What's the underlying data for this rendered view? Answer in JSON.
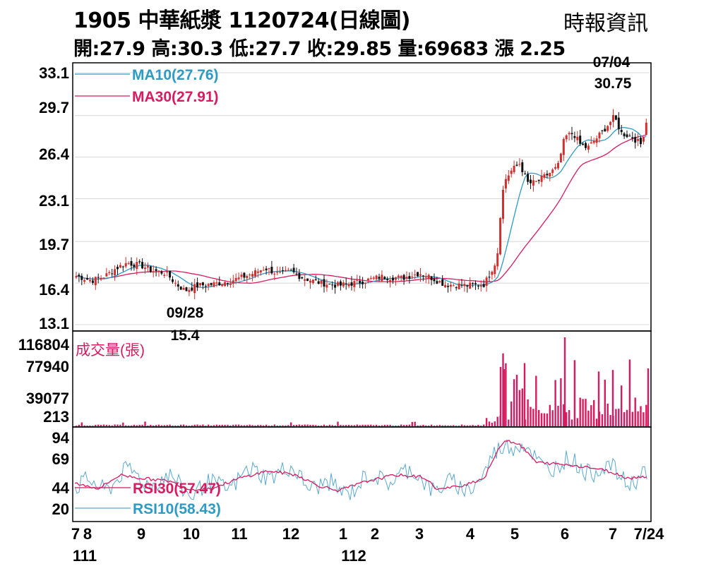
{
  "header": {
    "title": "1905  中華紙漿 1120724(日線圖)",
    "source": "時報資訊",
    "stats": "開:27.9 高:30.3 低:27.7 收:29.85 量:69683 漲 2.25"
  },
  "chart_data": [
    {
      "type": "candlestick",
      "title": "1905 中華紙漿 1120724(日線圖)",
      "ohlc_latest": {
        "open": 27.9,
        "high": 30.3,
        "low": 27.7,
        "close": 29.85,
        "volume": 69683,
        "change": 2.25
      },
      "ylim": [
        13.1,
        33.1
      ],
      "y_ticks": [
        "33.1",
        "29.7",
        "26.4",
        "23.1",
        "19.7",
        "16.4",
        "13.1"
      ],
      "x_ticks": [
        "7",
        "8",
        "9",
        "10",
        "11",
        "12",
        "1",
        "2",
        "3",
        "4",
        "5",
        "6",
        "7",
        "7/24"
      ],
      "x_year_labels": [
        "111",
        "112"
      ],
      "series": [
        {
          "name": "MA10(27.76)",
          "color": "#2e9bc4"
        },
        {
          "name": "MA30(27.91)",
          "color": "#d81b60"
        }
      ],
      "annotations": [
        {
          "date": "07/04",
          "value": "30.75",
          "kind": "high"
        },
        {
          "date": "09/28",
          "value": "15.4",
          "kind": "low"
        }
      ],
      "approx_close_by_month": {
        "7": 28.5,
        "8": 17.5,
        "9": 17.6,
        "10": 16.4,
        "11": 17.2,
        "12": 17.2,
        "1": 16.5,
        "2": 17.0,
        "3": 16.8,
        "4": 16.4,
        "5": 25.0,
        "6": 27.5,
        "7/24": 29.85
      }
    },
    {
      "type": "bar",
      "title": "成交量(張)",
      "y_ticks": [
        "116804",
        "77940",
        "39077",
        "213"
      ],
      "ylim": [
        213,
        116804
      ]
    },
    {
      "type": "line",
      "y_ticks": [
        "94",
        "69",
        "44",
        "20"
      ],
      "series": [
        {
          "name": "RSI30(57.47)",
          "color": "#d81b60"
        },
        {
          "name": "RSI10(58.43)",
          "color": "#5aa9cf"
        }
      ]
    }
  ]
}
